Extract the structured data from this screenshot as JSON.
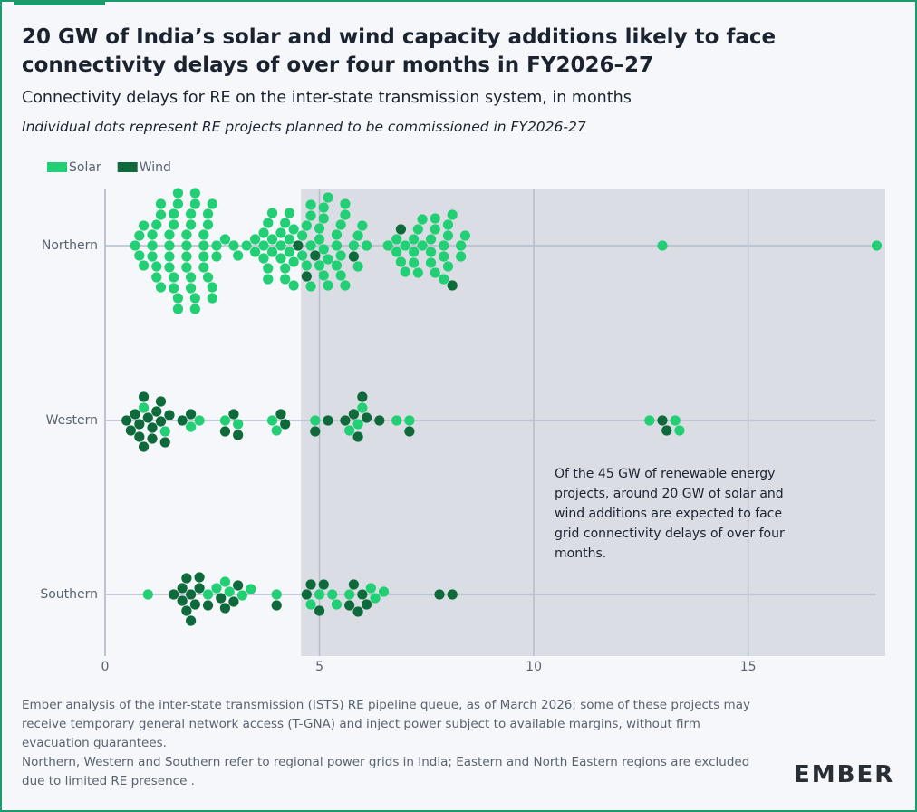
{
  "chart_data": {
    "type": "beeswarm",
    "title": "20 GW of India’s solar and wind capacity additions likely to face connectivity delays of over four months in FY2026–27",
    "subtitle": "Connectivity delays for RE on the inter-state transmission system, in months",
    "note": "Individual dots represent RE projects planned to be commissioned in FY2026-27",
    "annotation": "Of the 45 GW of renewable energy projects, around 20 GW of solar and wind additions are expected to face grid connectivity delays of over four months.",
    "categories": [
      "Northern",
      "Western",
      "Southern"
    ],
    "series": [
      {
        "name": "Solar",
        "color": "#22cf75",
        "values": [
          [
            0.7,
            0.8,
            0.8,
            0.9,
            0.9,
            1.1,
            1.1,
            1.1,
            1.2,
            1.2,
            1.2,
            1.3,
            1.3,
            1.3,
            1.5,
            1.5,
            1.5,
            1.5,
            1.6,
            1.6,
            1.6,
            1.6,
            1.7,
            1.7,
            1.7,
            1.7,
            1.9,
            1.9,
            1.9,
            1.9,
            2.0,
            2.0,
            2.0,
            2.0,
            2.1,
            2.1,
            2.1,
            2.1,
            2.3,
            2.3,
            2.3,
            2.3,
            2.4,
            2.4,
            2.4,
            2.5,
            2.5,
            2.5,
            2.6,
            2.6,
            2.8,
            3.0,
            3.1,
            3.3,
            3.5,
            3.5,
            3.7,
            3.7,
            3.7,
            3.8,
            3.8,
            3.8,
            3.9,
            3.9,
            3.9,
            4.1,
            4.1,
            4.1,
            4.2,
            4.2,
            4.2,
            4.3,
            4.3,
            4.3,
            4.4,
            4.4,
            4.4,
            4.6,
            4.6,
            4.7,
            4.7,
            4.8,
            4.8,
            4.8,
            4.8,
            5.0,
            5.0,
            5.0,
            5.1,
            5.1,
            5.1,
            5.1,
            5.2,
            5.2,
            5.2,
            5.4,
            5.4,
            5.4,
            5.5,
            5.5,
            5.5,
            5.6,
            5.6,
            5.6,
            5.8,
            5.9,
            5.9,
            6.0,
            6.1,
            6.6,
            6.8,
            6.8,
            6.9,
            7.0,
            7.0,
            7.2,
            7.2,
            7.2,
            7.3,
            7.3,
            7.4,
            7.4,
            7.6,
            7.6,
            7.6,
            7.7,
            7.7,
            7.7,
            7.9,
            7.9,
            7.9,
            8.0,
            8.0,
            8.0,
            8.1,
            8.3,
            8.3,
            8.4,
            13.0,
            18.0
          ],
          [
            0.9,
            1.4,
            2.0,
            2.2,
            2.8,
            3.1,
            3.9,
            4.0,
            4.9,
            5.7,
            5.9,
            6.0,
            6.8,
            7.1,
            12.7,
            13.3,
            13.4
          ],
          [
            1.0,
            2.4,
            2.6,
            2.8,
            2.9,
            3.2,
            3.4,
            4.0,
            4.8,
            5.0,
            5.3,
            5.4,
            5.7,
            6.2,
            6.3,
            6.5
          ]
        ]
      },
      {
        "name": "Wind",
        "color": "#0e6a3b",
        "values": [
          [
            4.5,
            4.7,
            4.9,
            5.8,
            6.9,
            8.1
          ],
          [
            0.5,
            0.6,
            0.7,
            0.8,
            0.8,
            0.9,
            0.9,
            1.0,
            1.1,
            1.1,
            1.2,
            1.3,
            1.3,
            1.4,
            1.5,
            1.8,
            2.0,
            2.8,
            3.0,
            3.1,
            4.1,
            4.2,
            4.9,
            5.2,
            5.6,
            5.8,
            5.9,
            6.0,
            6.1,
            6.4,
            7.1,
            13.0,
            13.1
          ],
          [
            1.6,
            1.8,
            1.8,
            1.9,
            1.9,
            2.0,
            2.0,
            2.1,
            2.2,
            2.2,
            2.4,
            2.7,
            2.8,
            3.0,
            3.1,
            4.0,
            4.7,
            4.8,
            5.0,
            5.1,
            5.7,
            5.8,
            5.9,
            6.0,
            6.1,
            7.8,
            8.1
          ]
        ]
      }
    ],
    "xlim": [
      0,
      18.2
    ],
    "xticks": [
      0,
      5,
      10,
      15
    ],
    "highlight_from": 4.57,
    "grid": true,
    "legend": "top-left",
    "footnotes": [
      "Ember analysis of the inter-state transmission (ISTS) RE pipeline queue, as of March 2026; some of these projects may receive temporary general network access (T-GNA) and inject power subject to available margins, without firm evacuation guarantees.",
      "Northern, Western and Southern refer to regional power grids in India; Eastern and North Eastern regions are excluded due to limited RE presence ."
    ],
    "brand": "EMBER"
  }
}
